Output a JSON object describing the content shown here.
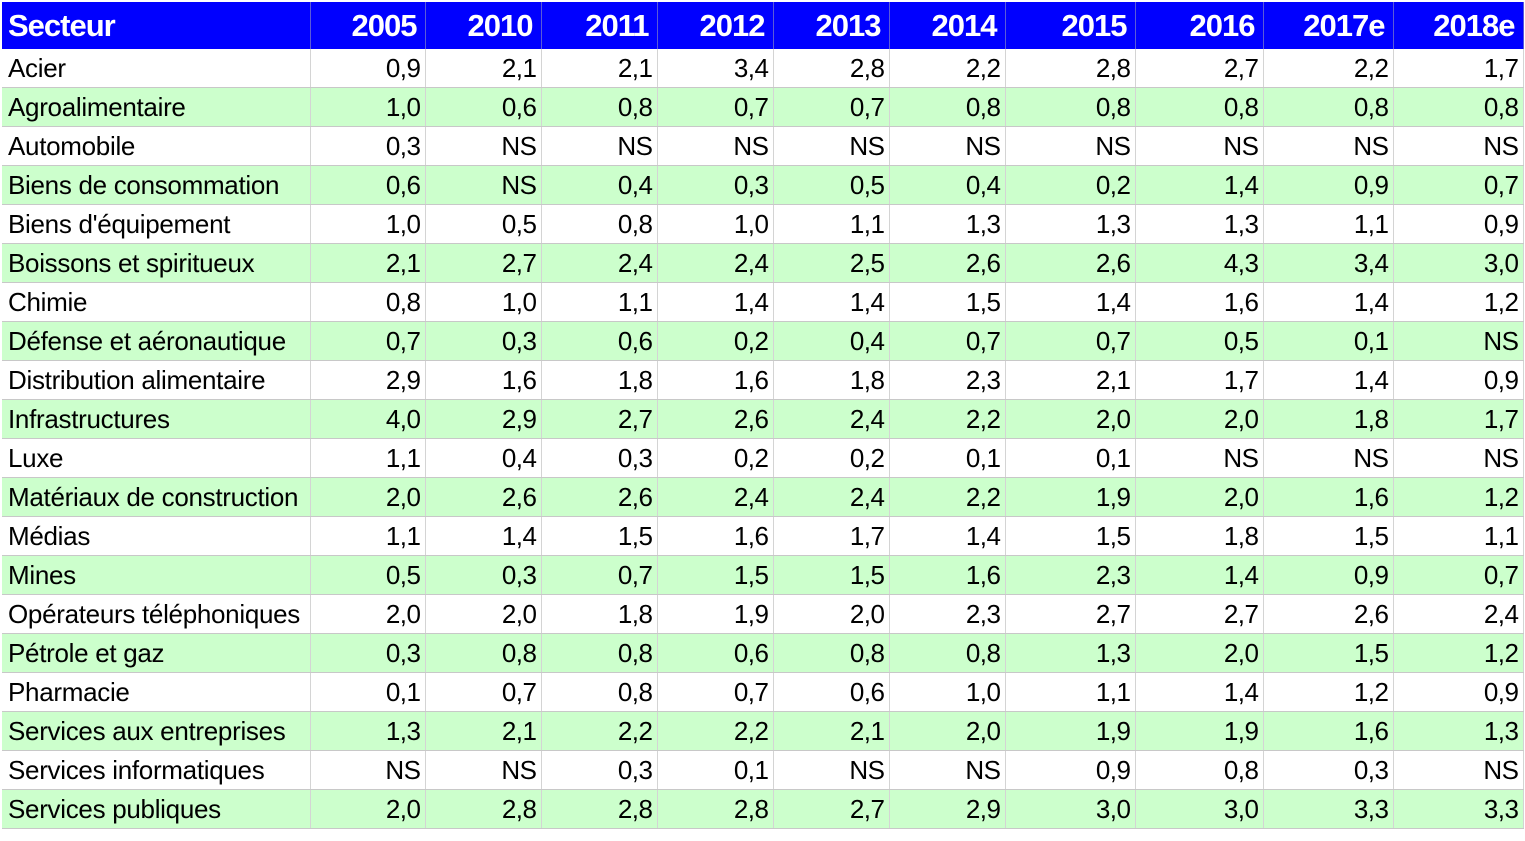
{
  "colors": {
    "header_bg": "#0000ff",
    "header_text": "#ffffff",
    "row_alt_bg": "#ccffcc",
    "row_bg": "#ffffff"
  },
  "chart_data": {
    "type": "table",
    "header_label": "Secteur",
    "columns": [
      "2005",
      "2010",
      "2011",
      "2012",
      "2013",
      "2014",
      "2015",
      "2016",
      "2017e",
      "2018e"
    ],
    "rows": [
      {
        "label": "Acier",
        "values": [
          "0,9",
          "2,1",
          "2,1",
          "3,4",
          "2,8",
          "2,2",
          "2,8",
          "2,7",
          "2,2",
          "1,7"
        ]
      },
      {
        "label": "Agroalimentaire",
        "values": [
          "1,0",
          "0,6",
          "0,8",
          "0,7",
          "0,7",
          "0,8",
          "0,8",
          "0,8",
          "0,8",
          "0,8"
        ]
      },
      {
        "label": "Automobile",
        "values": [
          "0,3",
          "NS",
          "NS",
          "NS",
          "NS",
          "NS",
          "NS",
          "NS",
          "NS",
          "NS"
        ]
      },
      {
        "label": "Biens de consommation",
        "values": [
          "0,6",
          "NS",
          "0,4",
          "0,3",
          "0,5",
          "0,4",
          "0,2",
          "1,4",
          "0,9",
          "0,7"
        ]
      },
      {
        "label": "Biens d'équipement",
        "values": [
          "1,0",
          "0,5",
          "0,8",
          "1,0",
          "1,1",
          "1,3",
          "1,3",
          "1,3",
          "1,1",
          "0,9"
        ]
      },
      {
        "label": "Boissons et spiritueux",
        "values": [
          "2,1",
          "2,7",
          "2,4",
          "2,4",
          "2,5",
          "2,6",
          "2,6",
          "4,3",
          "3,4",
          "3,0"
        ]
      },
      {
        "label": "Chimie",
        "values": [
          "0,8",
          "1,0",
          "1,1",
          "1,4",
          "1,4",
          "1,5",
          "1,4",
          "1,6",
          "1,4",
          "1,2"
        ]
      },
      {
        "label": "Défense et aéronautique",
        "values": [
          "0,7",
          "0,3",
          "0,6",
          "0,2",
          "0,4",
          "0,7",
          "0,7",
          "0,5",
          "0,1",
          "NS"
        ]
      },
      {
        "label": "Distribution alimentaire",
        "values": [
          "2,9",
          "1,6",
          "1,8",
          "1,6",
          "1,8",
          "2,3",
          "2,1",
          "1,7",
          "1,4",
          "0,9"
        ]
      },
      {
        "label": "Infrastructures",
        "values": [
          "4,0",
          "2,9",
          "2,7",
          "2,6",
          "2,4",
          "2,2",
          "2,0",
          "2,0",
          "1,8",
          "1,7"
        ]
      },
      {
        "label": "Luxe",
        "values": [
          "1,1",
          "0,4",
          "0,3",
          "0,2",
          "0,2",
          "0,1",
          "0,1",
          "NS",
          "NS",
          "NS"
        ]
      },
      {
        "label": "Matériaux de construction",
        "values": [
          "2,0",
          "2,6",
          "2,6",
          "2,4",
          "2,4",
          "2,2",
          "1,9",
          "2,0",
          "1,6",
          "1,2"
        ]
      },
      {
        "label": "Médias",
        "values": [
          "1,1",
          "1,4",
          "1,5",
          "1,6",
          "1,7",
          "1,4",
          "1,5",
          "1,8",
          "1,5",
          "1,1"
        ]
      },
      {
        "label": "Mines",
        "values": [
          "0,5",
          "0,3",
          "0,7",
          "1,5",
          "1,5",
          "1,6",
          "2,3",
          "1,4",
          "0,9",
          "0,7"
        ]
      },
      {
        "label": "Opérateurs téléphoniques",
        "values": [
          "2,0",
          "2,0",
          "1,8",
          "1,9",
          "2,0",
          "2,3",
          "2,7",
          "2,7",
          "2,6",
          "2,4"
        ]
      },
      {
        "label": "Pétrole et gaz",
        "values": [
          "0,3",
          "0,8",
          "0,8",
          "0,6",
          "0,8",
          "0,8",
          "1,3",
          "2,0",
          "1,5",
          "1,2"
        ]
      },
      {
        "label": "Pharmacie",
        "values": [
          "0,1",
          "0,7",
          "0,8",
          "0,7",
          "0,6",
          "1,0",
          "1,1",
          "1,4",
          "1,2",
          "0,9"
        ]
      },
      {
        "label": "Services aux entreprises",
        "values": [
          "1,3",
          "2,1",
          "2,2",
          "2,2",
          "2,1",
          "2,0",
          "1,9",
          "1,9",
          "1,6",
          "1,3"
        ]
      },
      {
        "label": "Services informatiques",
        "values": [
          "NS",
          "NS",
          "0,3",
          "0,1",
          "NS",
          "NS",
          "0,9",
          "0,8",
          "0,3",
          "NS"
        ]
      },
      {
        "label": "Services publiques",
        "values": [
          "2,0",
          "2,8",
          "2,8",
          "2,8",
          "2,7",
          "2,9",
          "3,0",
          "3,0",
          "3,3",
          "3,3"
        ]
      }
    ]
  }
}
